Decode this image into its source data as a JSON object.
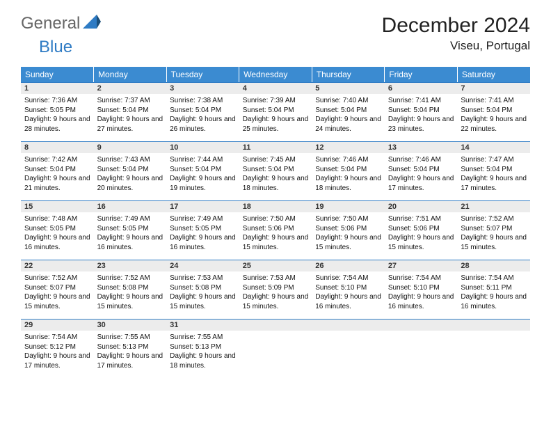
{
  "branding": {
    "general": "General",
    "blue": "Blue",
    "logo_color_primary": "#2e7bc4",
    "logo_color_dark": "#1b4f7a"
  },
  "title": "December 2024",
  "location": "Viseu, Portugal",
  "header_bg": "#3b8bd1",
  "header_text": "#ffffff",
  "daynum_bg": "#ececec",
  "daynum_border": "#2e7bc4",
  "columns": [
    "Sunday",
    "Monday",
    "Tuesday",
    "Wednesday",
    "Thursday",
    "Friday",
    "Saturday"
  ],
  "weeks": [
    [
      {
        "n": "1",
        "sr": "7:36 AM",
        "ss": "5:05 PM",
        "dl": "9 hours and 28 minutes."
      },
      {
        "n": "2",
        "sr": "7:37 AM",
        "ss": "5:04 PM",
        "dl": "9 hours and 27 minutes."
      },
      {
        "n": "3",
        "sr": "7:38 AM",
        "ss": "5:04 PM",
        "dl": "9 hours and 26 minutes."
      },
      {
        "n": "4",
        "sr": "7:39 AM",
        "ss": "5:04 PM",
        "dl": "9 hours and 25 minutes."
      },
      {
        "n": "5",
        "sr": "7:40 AM",
        "ss": "5:04 PM",
        "dl": "9 hours and 24 minutes."
      },
      {
        "n": "6",
        "sr": "7:41 AM",
        "ss": "5:04 PM",
        "dl": "9 hours and 23 minutes."
      },
      {
        "n": "7",
        "sr": "7:41 AM",
        "ss": "5:04 PM",
        "dl": "9 hours and 22 minutes."
      }
    ],
    [
      {
        "n": "8",
        "sr": "7:42 AM",
        "ss": "5:04 PM",
        "dl": "9 hours and 21 minutes."
      },
      {
        "n": "9",
        "sr": "7:43 AM",
        "ss": "5:04 PM",
        "dl": "9 hours and 20 minutes."
      },
      {
        "n": "10",
        "sr": "7:44 AM",
        "ss": "5:04 PM",
        "dl": "9 hours and 19 minutes."
      },
      {
        "n": "11",
        "sr": "7:45 AM",
        "ss": "5:04 PM",
        "dl": "9 hours and 18 minutes."
      },
      {
        "n": "12",
        "sr": "7:46 AM",
        "ss": "5:04 PM",
        "dl": "9 hours and 18 minutes."
      },
      {
        "n": "13",
        "sr": "7:46 AM",
        "ss": "5:04 PM",
        "dl": "9 hours and 17 minutes."
      },
      {
        "n": "14",
        "sr": "7:47 AM",
        "ss": "5:04 PM",
        "dl": "9 hours and 17 minutes."
      }
    ],
    [
      {
        "n": "15",
        "sr": "7:48 AM",
        "ss": "5:05 PM",
        "dl": "9 hours and 16 minutes."
      },
      {
        "n": "16",
        "sr": "7:49 AM",
        "ss": "5:05 PM",
        "dl": "9 hours and 16 minutes."
      },
      {
        "n": "17",
        "sr": "7:49 AM",
        "ss": "5:05 PM",
        "dl": "9 hours and 16 minutes."
      },
      {
        "n": "18",
        "sr": "7:50 AM",
        "ss": "5:06 PM",
        "dl": "9 hours and 15 minutes."
      },
      {
        "n": "19",
        "sr": "7:50 AM",
        "ss": "5:06 PM",
        "dl": "9 hours and 15 minutes."
      },
      {
        "n": "20",
        "sr": "7:51 AM",
        "ss": "5:06 PM",
        "dl": "9 hours and 15 minutes."
      },
      {
        "n": "21",
        "sr": "7:52 AM",
        "ss": "5:07 PM",
        "dl": "9 hours and 15 minutes."
      }
    ],
    [
      {
        "n": "22",
        "sr": "7:52 AM",
        "ss": "5:07 PM",
        "dl": "9 hours and 15 minutes."
      },
      {
        "n": "23",
        "sr": "7:52 AM",
        "ss": "5:08 PM",
        "dl": "9 hours and 15 minutes."
      },
      {
        "n": "24",
        "sr": "7:53 AM",
        "ss": "5:08 PM",
        "dl": "9 hours and 15 minutes."
      },
      {
        "n": "25",
        "sr": "7:53 AM",
        "ss": "5:09 PM",
        "dl": "9 hours and 15 minutes."
      },
      {
        "n": "26",
        "sr": "7:54 AM",
        "ss": "5:10 PM",
        "dl": "9 hours and 16 minutes."
      },
      {
        "n": "27",
        "sr": "7:54 AM",
        "ss": "5:10 PM",
        "dl": "9 hours and 16 minutes."
      },
      {
        "n": "28",
        "sr": "7:54 AM",
        "ss": "5:11 PM",
        "dl": "9 hours and 16 minutes."
      }
    ],
    [
      {
        "n": "29",
        "sr": "7:54 AM",
        "ss": "5:12 PM",
        "dl": "9 hours and 17 minutes."
      },
      {
        "n": "30",
        "sr": "7:55 AM",
        "ss": "5:13 PM",
        "dl": "9 hours and 17 minutes."
      },
      {
        "n": "31",
        "sr": "7:55 AM",
        "ss": "5:13 PM",
        "dl": "9 hours and 18 minutes."
      },
      null,
      null,
      null,
      null
    ]
  ],
  "labels": {
    "sunrise": "Sunrise:",
    "sunset": "Sunset:",
    "daylight": "Daylight:"
  }
}
